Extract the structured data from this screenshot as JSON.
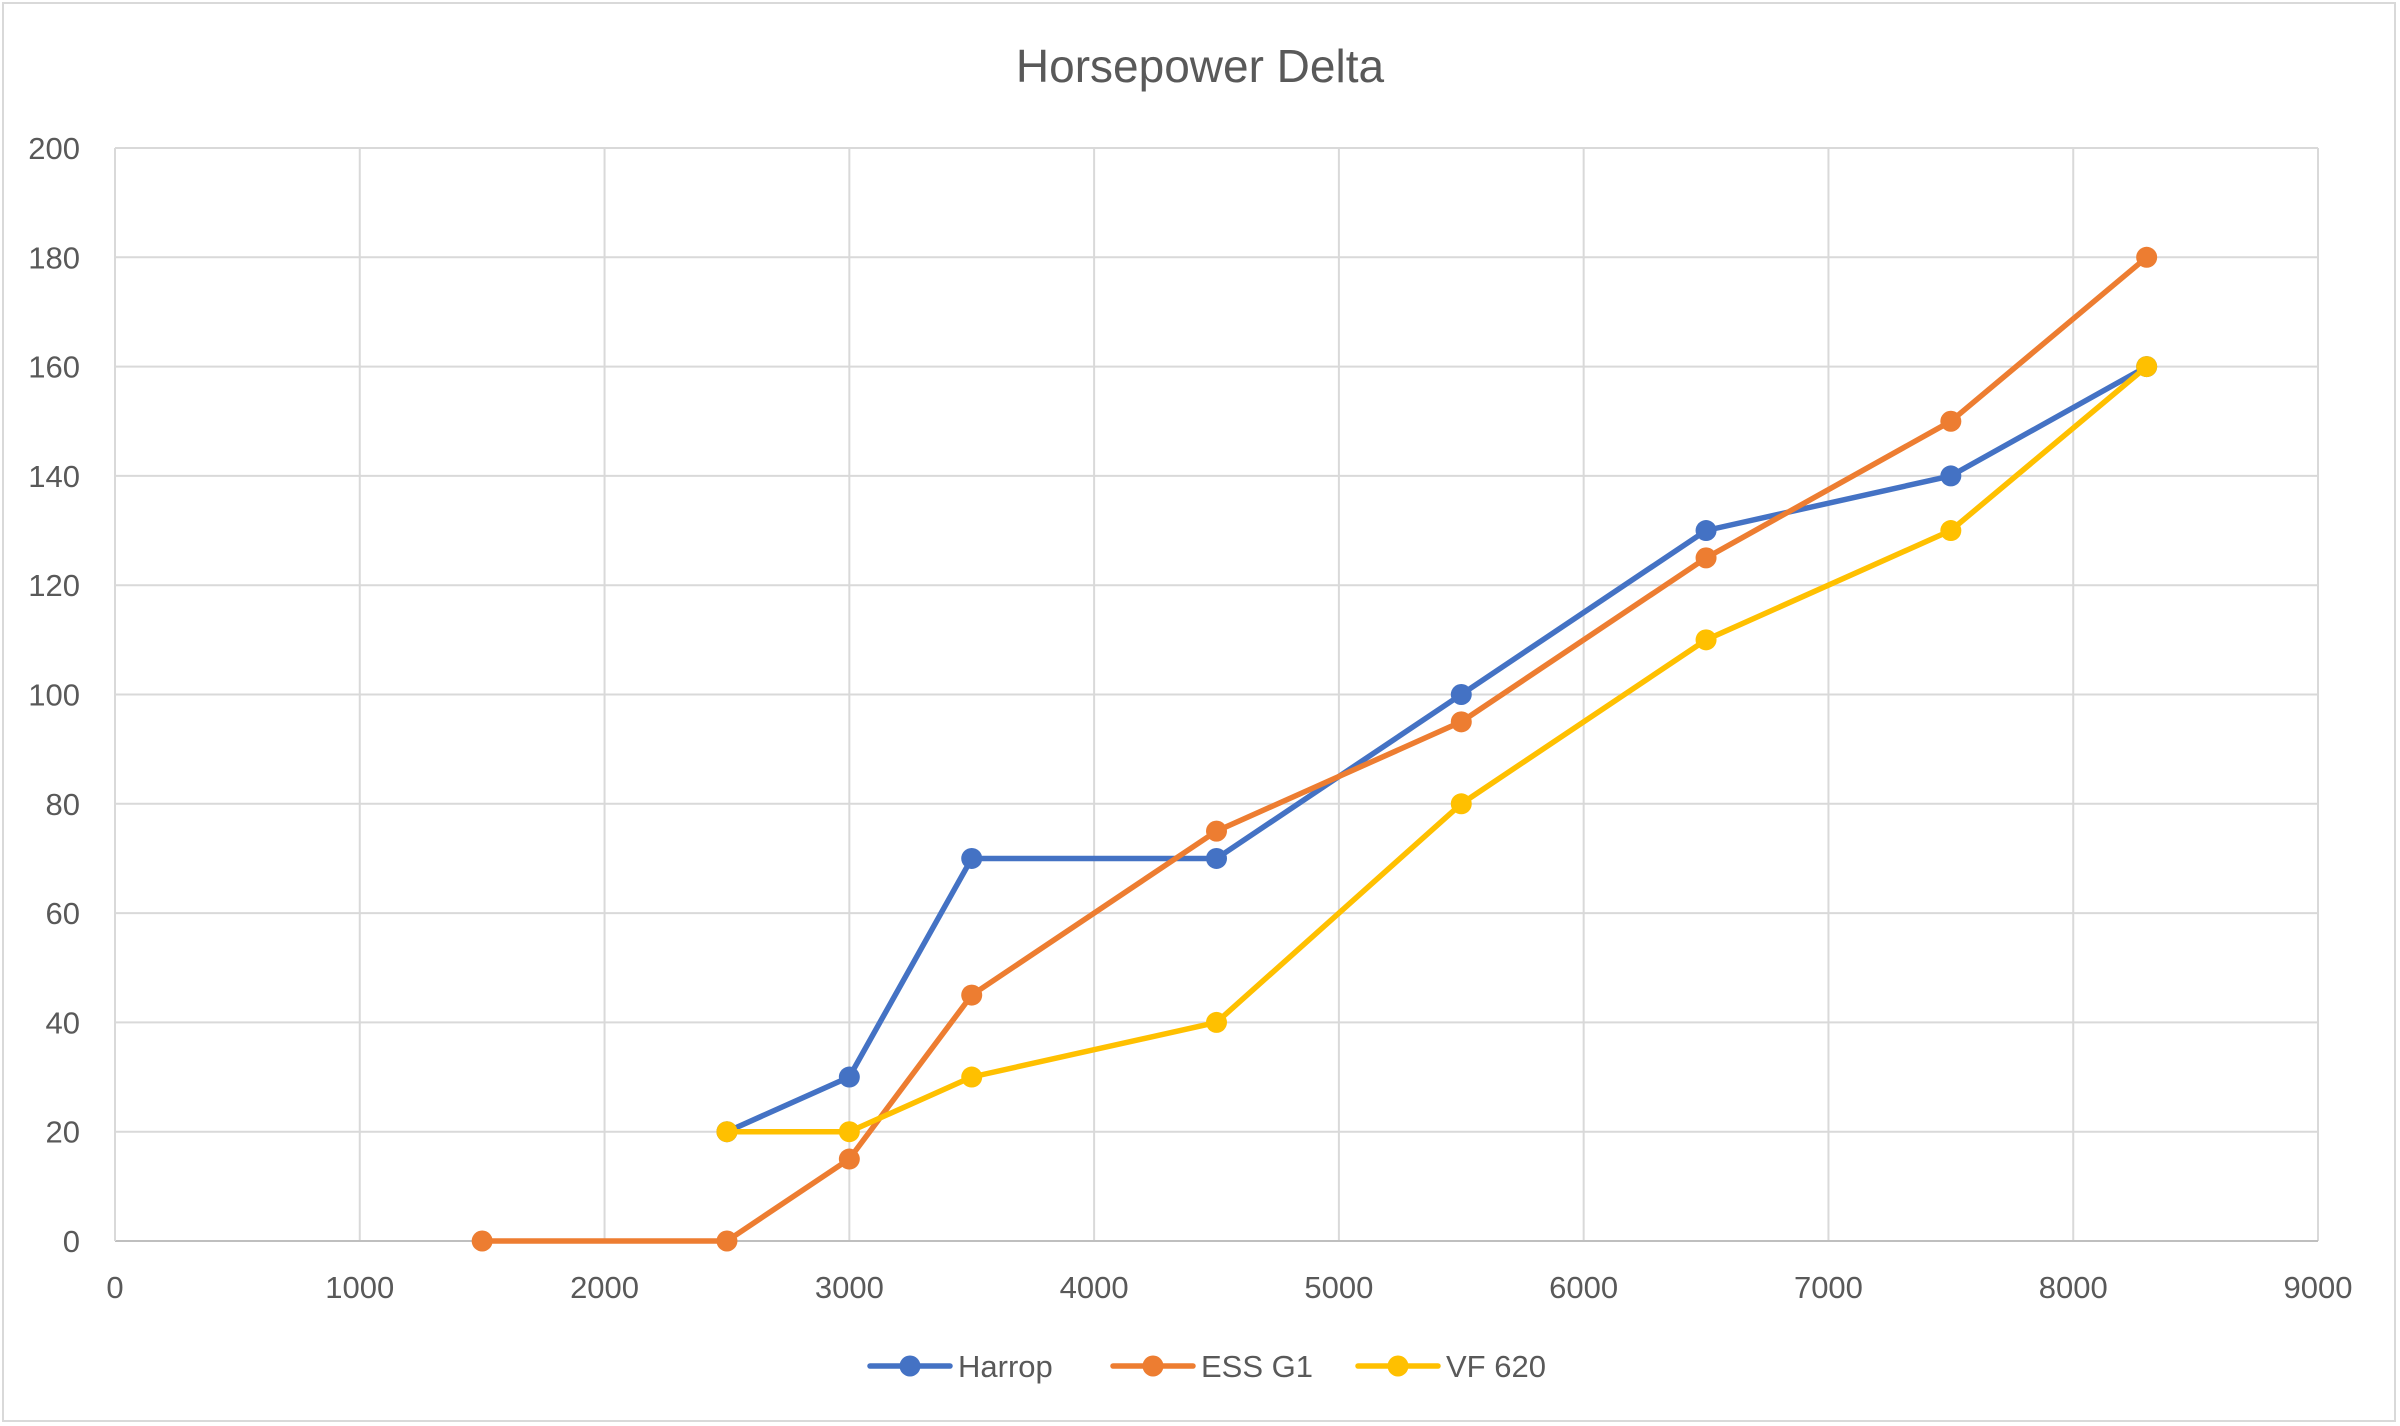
{
  "chart_data": {
    "type": "line",
    "title": "Horsepower Delta",
    "xlabel": "",
    "ylabel": "",
    "xlim": [
      0,
      9000
    ],
    "ylim": [
      0,
      200
    ],
    "x_ticks": [
      0,
      1000,
      2000,
      3000,
      4000,
      5000,
      6000,
      7000,
      8000,
      9000
    ],
    "y_ticks": [
      0,
      20,
      40,
      60,
      80,
      100,
      120,
      140,
      160,
      180,
      200
    ],
    "grid": true,
    "legend_position": "bottom",
    "series": [
      {
        "name": "Harrop",
        "color": "#4472c4",
        "x": [
          2500,
          3000,
          3500,
          4500,
          5500,
          6500,
          7500,
          8300
        ],
        "y": [
          20,
          30,
          70,
          70,
          100,
          130,
          140,
          160
        ]
      },
      {
        "name": "ESS G1",
        "color": "#ed7d31",
        "x": [
          1500,
          2500,
          3000,
          3500,
          4500,
          5500,
          6500,
          7500,
          8300
        ],
        "y": [
          0,
          0,
          15,
          45,
          75,
          95,
          125,
          150,
          180
        ]
      },
      {
        "name": "VF 620",
        "color": "#ffc000",
        "x": [
          2500,
          3000,
          3500,
          4500,
          5500,
          6500,
          7500,
          8300
        ],
        "y": [
          20,
          20,
          30,
          40,
          80,
          110,
          130,
          160
        ]
      }
    ]
  }
}
